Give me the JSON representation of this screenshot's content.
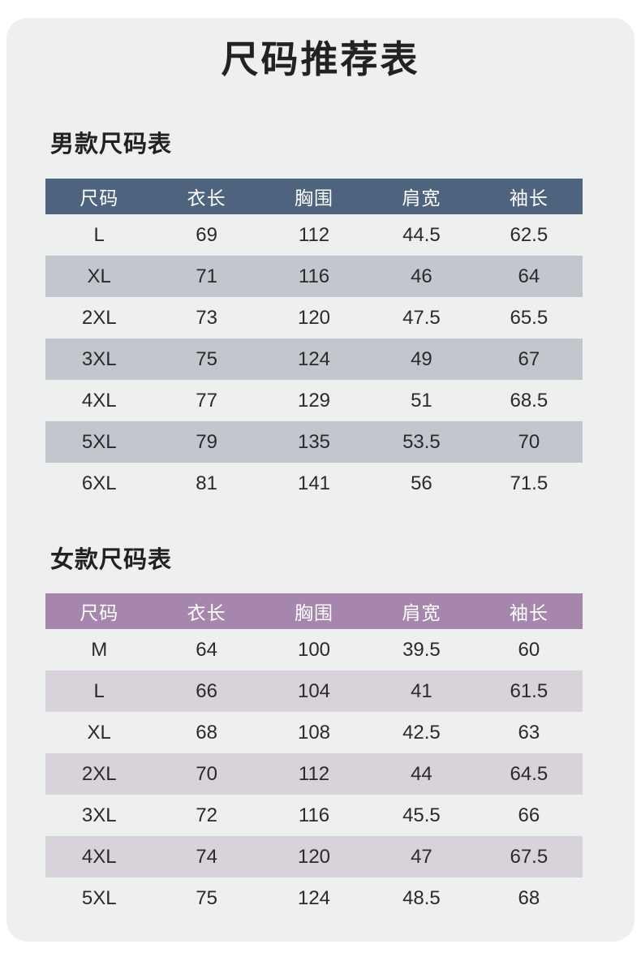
{
  "page": {
    "title": "尺码推荐表"
  },
  "colors": {
    "page_bg": "#ffffff",
    "card_bg": "#eef0ef",
    "men_header_bg": "#4e637e",
    "men_stripe_bg": "#c2c7cd",
    "women_header_bg": "#a686ac",
    "women_stripe_bg": "#d8d3da",
    "header_text": "#ffffff",
    "body_text": "#2a2a2a"
  },
  "tables": [
    {
      "id": "men-size-table",
      "heading": "男款尺码表",
      "header_bg": "#4e637e",
      "stripe_bg": "#c2c7cd",
      "columns": [
        "尺码",
        "衣长",
        "胸围",
        "肩宽",
        "袖长"
      ],
      "rows": [
        [
          "L",
          "69",
          "112",
          "44.5",
          "62.5"
        ],
        [
          "XL",
          "71",
          "116",
          "46",
          "64"
        ],
        [
          "2XL",
          "73",
          "120",
          "47.5",
          "65.5"
        ],
        [
          "3XL",
          "75",
          "124",
          "49",
          "67"
        ],
        [
          "4XL",
          "77",
          "129",
          "51",
          "68.5"
        ],
        [
          "5XL",
          "79",
          "135",
          "53.5",
          "70"
        ],
        [
          "6XL",
          "81",
          "141",
          "56",
          "71.5"
        ]
      ]
    },
    {
      "id": "women-size-table",
      "heading": "女款尺码表",
      "header_bg": "#a686ac",
      "stripe_bg": "#d8d3da",
      "columns": [
        "尺码",
        "衣长",
        "胸围",
        "肩宽",
        "袖长"
      ],
      "rows": [
        [
          "M",
          "64",
          "100",
          "39.5",
          "60"
        ],
        [
          "L",
          "66",
          "104",
          "41",
          "61.5"
        ],
        [
          "XL",
          "68",
          "108",
          "42.5",
          "63"
        ],
        [
          "2XL",
          "70",
          "112",
          "44",
          "64.5"
        ],
        [
          "3XL",
          "72",
          "116",
          "45.5",
          "66"
        ],
        [
          "4XL",
          "74",
          "120",
          "47",
          "67.5"
        ],
        [
          "5XL",
          "75",
          "124",
          "48.5",
          "68"
        ]
      ]
    }
  ]
}
